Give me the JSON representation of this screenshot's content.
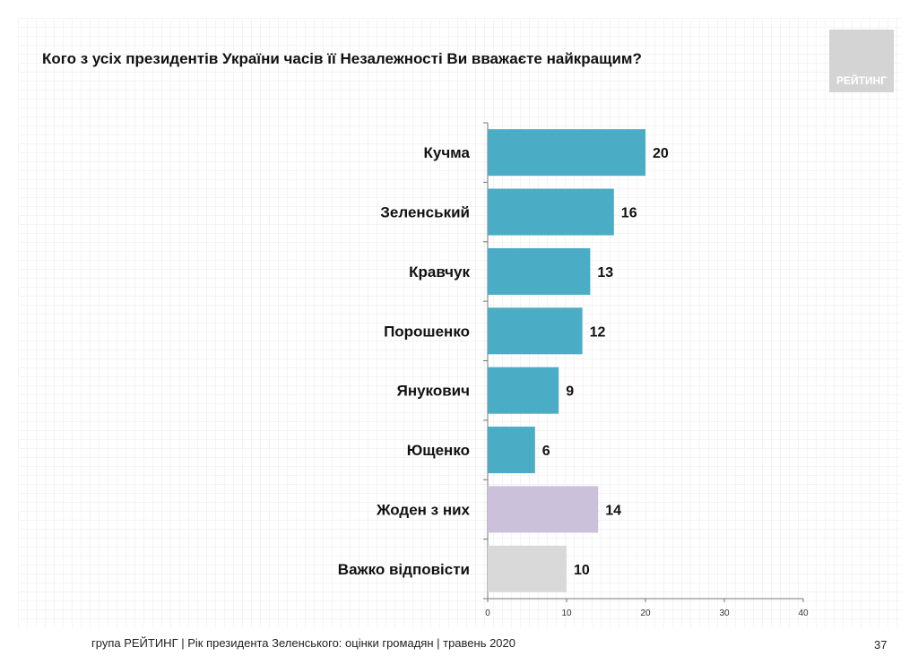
{
  "header": {
    "title": "Кого з усіх президентів України часів її Незалежності Ви вважаєте найкращим?",
    "logo_text": "РЕЙТИНГ"
  },
  "footer": {
    "text": "група РЕЙТИНГ |  Рік президента Зеленського: оцінки громадян | травень 2020",
    "page_number": "37"
  },
  "chart_data": {
    "type": "bar",
    "orientation": "horizontal",
    "categories": [
      "Кучма",
      "Зеленський",
      "Кравчук",
      "Порошенко",
      "Янукович",
      "Ющенко",
      "Жоден з них",
      "Важко відповісти"
    ],
    "values": [
      20,
      16,
      13,
      12,
      9,
      6,
      14,
      10
    ],
    "colors": [
      "#4bacc6",
      "#4bacc6",
      "#4bacc6",
      "#4bacc6",
      "#4bacc6",
      "#4bacc6",
      "#ccc1da",
      "#d9d9d9"
    ],
    "xlim": [
      0,
      40
    ],
    "xticks": [
      0,
      10,
      20,
      30,
      40
    ],
    "grid": false
  }
}
